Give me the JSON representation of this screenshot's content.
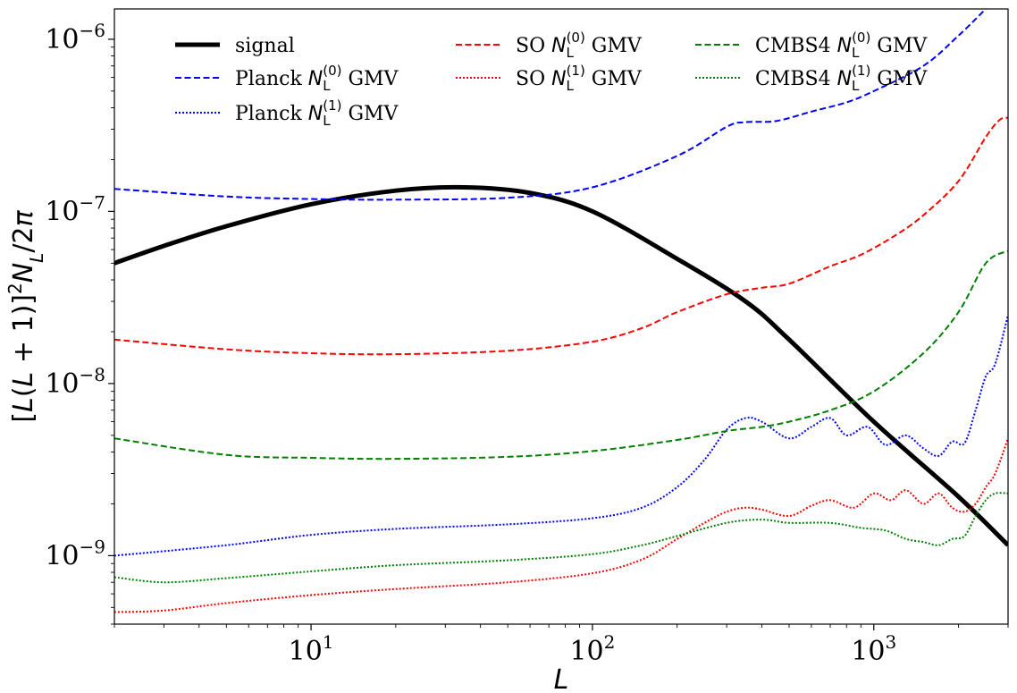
{
  "chart_data": {
    "type": "line",
    "xscale": "log",
    "yscale": "log",
    "xlabel": "L",
    "ylabel": "[L(L+1)]^2 N_L/2π",
    "xlim": [
      2,
      3000
    ],
    "ylim": [
      4e-10,
      1.5e-06
    ],
    "x_ticks": [
      {
        "value": 10,
        "base": "10",
        "exp": "1"
      },
      {
        "value": 100,
        "base": "10",
        "exp": "2"
      },
      {
        "value": 1000,
        "base": "10",
        "exp": "3"
      }
    ],
    "y_ticks": [
      {
        "value": 1e-09,
        "base": "10",
        "exp": "−9"
      },
      {
        "value": 1e-08,
        "base": "10",
        "exp": "−8"
      },
      {
        "value": 1e-07,
        "base": "10",
        "exp": "−7"
      },
      {
        "value": 1e-06,
        "base": "10",
        "exp": "−6"
      }
    ],
    "series": [
      {
        "name": "signal",
        "legend_prefix": "signal",
        "legend_sub": "",
        "legend_sup": "",
        "legend_suffix": "",
        "color": "#000000",
        "style": "solid",
        "width": 5,
        "points": [
          [
            2,
            5e-08
          ],
          [
            3,
            6.3e-08
          ],
          [
            5,
            8.2e-08
          ],
          [
            10,
            1.1e-07
          ],
          [
            20,
            1.32e-07
          ],
          [
            35,
            1.38e-07
          ],
          [
            60,
            1.28e-07
          ],
          [
            100,
            1e-07
          ],
          [
            200,
            5.3e-08
          ],
          [
            350,
            3e-08
          ],
          [
            500,
            1.8e-08
          ],
          [
            1000,
            6e-09
          ],
          [
            2000,
            2.2e-09
          ],
          [
            3000,
            1.15e-09
          ]
        ]
      },
      {
        "name": "Planck N_L^(0) GMV",
        "legend_prefix": "Planck ",
        "legend_sub": "L",
        "legend_sup": "(0)",
        "legend_suffix": " GMV",
        "color": "#0000ff",
        "style": "dashed",
        "width": 2,
        "points": [
          [
            2,
            1.35e-07
          ],
          [
            5,
            1.22e-07
          ],
          [
            10,
            1.18e-07
          ],
          [
            20,
            1.17e-07
          ],
          [
            50,
            1.2e-07
          ],
          [
            100,
            1.38e-07
          ],
          [
            200,
            2.1e-07
          ],
          [
            300,
            3.1e-07
          ],
          [
            350,
            3.3e-07
          ],
          [
            450,
            3.35e-07
          ],
          [
            600,
            3.8e-07
          ],
          [
            800,
            4.3e-07
          ],
          [
            1000,
            5e-07
          ],
          [
            1500,
            7e-07
          ],
          [
            2000,
            1.05e-06
          ],
          [
            2500,
            1.5e-06
          ]
        ]
      },
      {
        "name": "Planck N_L^(1) GMV",
        "legend_prefix": "Planck ",
        "legend_sub": "L",
        "legend_sup": "(1)",
        "legend_suffix": " GMV",
        "color": "#0000ff",
        "style": "dotted",
        "width": 2,
        "points": [
          [
            2,
            1e-09
          ],
          [
            5,
            1.15e-09
          ],
          [
            10,
            1.32e-09
          ],
          [
            20,
            1.43e-09
          ],
          [
            50,
            1.52e-09
          ],
          [
            100,
            1.65e-09
          ],
          [
            150,
            1.9e-09
          ],
          [
            200,
            2.5e-09
          ],
          [
            250,
            3.6e-09
          ],
          [
            300,
            5.4e-09
          ],
          [
            350,
            6.3e-09
          ],
          [
            400,
            6e-09
          ],
          [
            500,
            4.8e-09
          ],
          [
            600,
            5.6e-09
          ],
          [
            700,
            6.3e-09
          ],
          [
            800,
            5e-09
          ],
          [
            950,
            5.6e-09
          ],
          [
            1100,
            4.4e-09
          ],
          [
            1300,
            5e-09
          ],
          [
            1500,
            4.2e-09
          ],
          [
            1700,
            3.8e-09
          ],
          [
            1900,
            4.6e-09
          ],
          [
            2100,
            4.5e-09
          ],
          [
            2300,
            7e-09
          ],
          [
            2500,
            1.1e-08
          ],
          [
            2700,
            1.3e-08
          ],
          [
            3000,
            2.5e-08
          ]
        ]
      },
      {
        "name": "SO N_L^(0) GMV",
        "legend_prefix": "SO ",
        "legend_sub": "L",
        "legend_sup": "(0)",
        "legend_suffix": " GMV",
        "color": "#ff0000",
        "style": "dashed",
        "width": 2,
        "points": [
          [
            2,
            1.8e-08
          ],
          [
            5,
            1.58e-08
          ],
          [
            10,
            1.5e-08
          ],
          [
            20,
            1.48e-08
          ],
          [
            50,
            1.55e-08
          ],
          [
            100,
            1.75e-08
          ],
          [
            150,
            2.1e-08
          ],
          [
            200,
            2.6e-08
          ],
          [
            300,
            3.3e-08
          ],
          [
            400,
            3.6e-08
          ],
          [
            500,
            3.8e-08
          ],
          [
            700,
            4.8e-08
          ],
          [
            900,
            5.6e-08
          ],
          [
            1200,
            7.3e-08
          ],
          [
            1500,
            9.5e-08
          ],
          [
            2000,
            1.5e-07
          ],
          [
            2500,
            2.7e-07
          ],
          [
            2800,
            3.4e-07
          ],
          [
            3000,
            3.5e-07
          ]
        ]
      },
      {
        "name": "SO N_L^(1) GMV",
        "legend_prefix": "SO ",
        "legend_sub": "L",
        "legend_sup": "(1)",
        "legend_suffix": " GMV",
        "color": "#ff0000",
        "style": "dotted",
        "width": 2,
        "points": [
          [
            2,
            4.7e-10
          ],
          [
            3,
            4.8e-10
          ],
          [
            5,
            5.3e-10
          ],
          [
            10,
            5.9e-10
          ],
          [
            20,
            6.4e-10
          ],
          [
            50,
            7e-10
          ],
          [
            100,
            7.9e-10
          ],
          [
            150,
            9.5e-10
          ],
          [
            200,
            1.25e-09
          ],
          [
            250,
            1.55e-09
          ],
          [
            300,
            1.8e-09
          ],
          [
            350,
            1.9e-09
          ],
          [
            400,
            1.85e-09
          ],
          [
            500,
            1.7e-09
          ],
          [
            600,
            1.95e-09
          ],
          [
            700,
            2.1e-09
          ],
          [
            850,
            1.9e-09
          ],
          [
            1000,
            2.3e-09
          ],
          [
            1150,
            2.1e-09
          ],
          [
            1300,
            2.4e-09
          ],
          [
            1500,
            2e-09
          ],
          [
            1700,
            2.3e-09
          ],
          [
            1900,
            1.9e-09
          ],
          [
            2100,
            1.8e-09
          ],
          [
            2300,
            2e-09
          ],
          [
            2500,
            2.5e-09
          ],
          [
            2700,
            3e-09
          ],
          [
            3000,
            4.8e-09
          ]
        ]
      },
      {
        "name": "CMBS4 N_L^(0) GMV",
        "legend_prefix": "CMBS4 ",
        "legend_sub": "L",
        "legend_sup": "(0)",
        "legend_suffix": " GMV",
        "color": "#008000",
        "style": "dashed",
        "width": 2,
        "points": [
          [
            2,
            4.8e-09
          ],
          [
            5,
            3.85e-09
          ],
          [
            10,
            3.7e-09
          ],
          [
            20,
            3.65e-09
          ],
          [
            50,
            3.75e-09
          ],
          [
            100,
            4.05e-09
          ],
          [
            200,
            4.7e-09
          ],
          [
            300,
            5.3e-09
          ],
          [
            400,
            5.6e-09
          ],
          [
            500,
            6e-09
          ],
          [
            700,
            7e-09
          ],
          [
            1000,
            9e-09
          ],
          [
            1500,
            1.5e-08
          ],
          [
            2000,
            2.6e-08
          ],
          [
            2500,
            5e-08
          ],
          [
            3000,
            5.9e-08
          ]
        ]
      },
      {
        "name": "CMBS4 N_L^(1) GMV",
        "legend_prefix": "CMBS4 ",
        "legend_sub": "L",
        "legend_sup": "(1)",
        "legend_suffix": " GMV",
        "color": "#008000",
        "style": "dotted",
        "width": 2,
        "points": [
          [
            2,
            7.5e-10
          ],
          [
            3,
            7e-10
          ],
          [
            5,
            7.4e-10
          ],
          [
            10,
            8.1e-10
          ],
          [
            20,
            8.8e-10
          ],
          [
            50,
            9.4e-10
          ],
          [
            100,
            1.02e-09
          ],
          [
            150,
            1.15e-09
          ],
          [
            200,
            1.3e-09
          ],
          [
            300,
            1.55e-09
          ],
          [
            400,
            1.62e-09
          ],
          [
            500,
            1.55e-09
          ],
          [
            700,
            1.55e-09
          ],
          [
            900,
            1.45e-09
          ],
          [
            1100,
            1.4e-09
          ],
          [
            1300,
            1.25e-09
          ],
          [
            1500,
            1.2e-09
          ],
          [
            1700,
            1.15e-09
          ],
          [
            1900,
            1.25e-09
          ],
          [
            2100,
            1.3e-09
          ],
          [
            2300,
            1.7e-09
          ],
          [
            2500,
            2.1e-09
          ],
          [
            2700,
            2.3e-09
          ],
          [
            3000,
            2.3e-09
          ]
        ]
      }
    ],
    "legend_position": "top"
  }
}
